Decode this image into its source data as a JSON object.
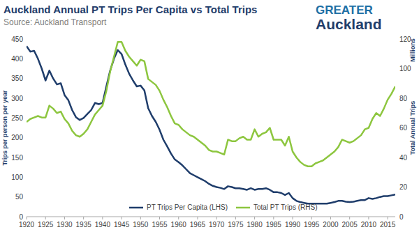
{
  "chart_data": {
    "type": "line",
    "title": "Auckland Annual PT Trips Per Capita vs Total Trips",
    "subtitle": "Source: Auckland Transport",
    "ylabel": "Trips per person per year",
    "y2label": "Total Annual Trips",
    "annotations": [
      "Millions",
      "GREATER",
      "Auckland"
    ],
    "x": [
      1920,
      1921,
      1922,
      1923,
      1924,
      1925,
      1926,
      1927,
      1928,
      1929,
      1930,
      1931,
      1932,
      1933,
      1934,
      1935,
      1936,
      1937,
      1938,
      1939,
      1940,
      1941,
      1942,
      1943,
      1944,
      1945,
      1946,
      1947,
      1948,
      1949,
      1950,
      1951,
      1952,
      1953,
      1954,
      1955,
      1956,
      1957,
      1958,
      1959,
      1960,
      1961,
      1962,
      1963,
      1964,
      1965,
      1966,
      1967,
      1968,
      1969,
      1970,
      1971,
      1972,
      1973,
      1974,
      1975,
      1976,
      1977,
      1978,
      1979,
      1980,
      1981,
      1982,
      1983,
      1984,
      1985,
      1986,
      1987,
      1988,
      1989,
      1990,
      1991,
      1992,
      1993,
      1994,
      1995,
      1996,
      1997,
      1998,
      1999,
      2000,
      2001,
      2002,
      2003,
      2004,
      2005,
      2006,
      2007,
      2008,
      2009,
      2010,
      2011,
      2012,
      2013,
      2014,
      2015,
      2016,
      2017
    ],
    "series": [
      {
        "name": "PT Trips Per Capita (LHS)",
        "color": "#1f3d6b",
        "axis": "y",
        "values": [
          432,
          418,
          420,
          400,
          375,
          345,
          370,
          350,
          335,
          338,
          308,
          295,
          270,
          252,
          245,
          250,
          260,
          270,
          288,
          285,
          288,
          330,
          370,
          400,
          422,
          412,
          385,
          362,
          345,
          330,
          332,
          320,
          275,
          255,
          240,
          220,
          195,
          178,
          160,
          145,
          138,
          130,
          120,
          110,
          105,
          100,
          95,
          90,
          83,
          78,
          75,
          73,
          70,
          77,
          75,
          72,
          72,
          70,
          68,
          72,
          68,
          70,
          70,
          72,
          68,
          62,
          62,
          60,
          55,
          60,
          47,
          40,
          37,
          35,
          33,
          33,
          33,
          33,
          33,
          33,
          35,
          37,
          40,
          40,
          38,
          37,
          38,
          40,
          42,
          42,
          47,
          45,
          47,
          50,
          52,
          52,
          54,
          56
        ]
      },
      {
        "name": "Total PT Trips (RHS)",
        "color": "#8dc63f",
        "axis": "y2",
        "values": [
          64,
          66,
          67,
          68,
          67,
          67,
          75,
          73,
          70,
          71,
          66,
          63,
          58,
          55,
          54,
          56,
          59,
          64,
          69,
          72,
          75,
          85,
          98,
          108,
          118,
          118,
          112,
          108,
          105,
          102,
          106,
          105,
          93,
          91,
          89,
          85,
          79,
          74,
          68,
          63,
          62,
          59,
          57,
          55,
          54,
          52,
          50,
          48,
          45,
          44,
          44,
          43,
          42,
          52,
          51,
          51,
          53,
          54,
          52,
          52,
          59,
          54,
          56,
          57,
          60,
          52,
          52,
          52,
          48,
          54,
          44,
          40,
          37,
          35,
          34,
          34,
          36,
          37,
          38,
          40,
          42,
          44,
          47,
          52,
          51,
          50,
          51,
          53,
          55,
          59,
          60,
          66,
          70,
          68,
          73,
          79,
          83,
          88
        ]
      }
    ],
    "xlim": [
      1920,
      2017
    ],
    "xticks": [
      1920,
      1925,
      1930,
      1935,
      1940,
      1945,
      1950,
      1955,
      1960,
      1965,
      1970,
      1975,
      1980,
      1985,
      1990,
      1995,
      2000,
      2005,
      2010,
      2015
    ],
    "ylim": [
      0,
      450
    ],
    "yticks": [
      0,
      50,
      100,
      150,
      200,
      250,
      300,
      350,
      400,
      450
    ],
    "y2lim": [
      0,
      120
    ],
    "y2ticks": [
      0,
      20,
      40,
      60,
      80,
      100,
      120
    ],
    "grid": false,
    "legend": "bottom"
  }
}
